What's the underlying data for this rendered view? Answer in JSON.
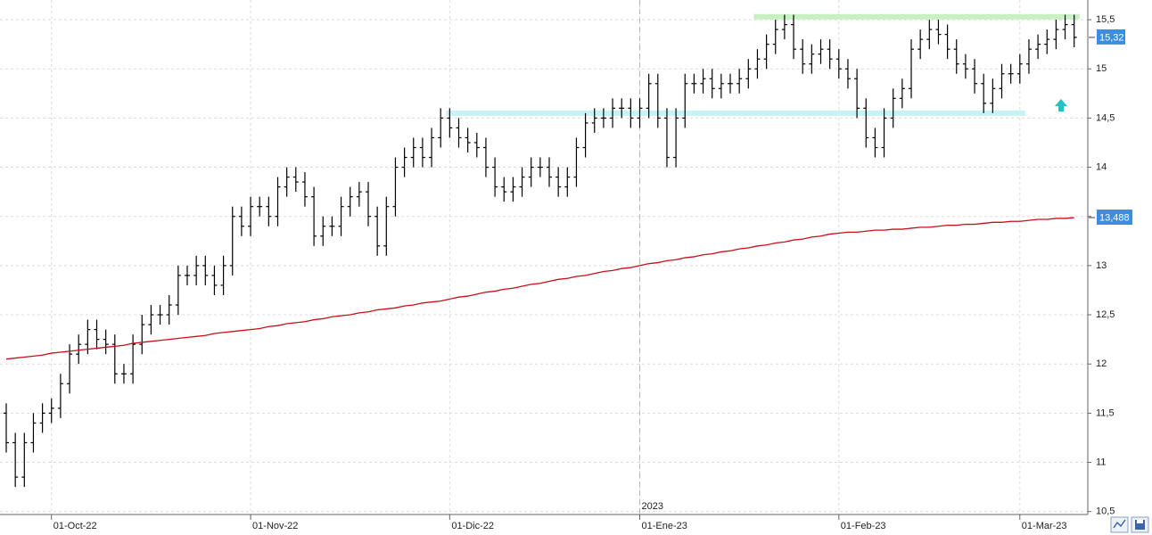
{
  "chart_data": {
    "type": "ohlc",
    "categories": [
      null,
      null,
      null,
      null,
      null,
      "01-Oct-22",
      null,
      null,
      null,
      null,
      null,
      null,
      null,
      null,
      null,
      null,
      null,
      null,
      null,
      null,
      null,
      null,
      null,
      null,
      null,
      null,
      null,
      "01-Nov-22",
      null,
      null,
      null,
      null,
      null,
      null,
      null,
      null,
      null,
      null,
      null,
      null,
      null,
      null,
      null,
      null,
      null,
      null,
      null,
      null,
      null,
      "01-Dic-22",
      null,
      null,
      null,
      null,
      null,
      null,
      null,
      null,
      null,
      null,
      null,
      null,
      null,
      null,
      null,
      null,
      null,
      null,
      null,
      null,
      "01-Ene-23",
      null,
      null,
      null,
      null,
      null,
      null,
      null,
      null,
      null,
      null,
      null,
      null,
      null,
      null,
      null,
      null,
      null,
      null,
      null,
      null,
      null,
      "01-Feb-23",
      null,
      null,
      null,
      null,
      null,
      null,
      null,
      null,
      null,
      null,
      null,
      null,
      null,
      null,
      null,
      null,
      null,
      null,
      null,
      "01-Mar-23",
      null,
      null,
      null,
      null,
      null,
      null
    ],
    "year_marker": {
      "index": 70,
      "label": "2023"
    },
    "ylim": [
      10.47,
      15.7
    ],
    "yticks": [
      {
        "value": 10.5,
        "label": "10,5"
      },
      11,
      {
        "value": 11.5,
        "label": "11,5"
      },
      12,
      {
        "value": 12.5,
        "label": "12,5"
      },
      13,
      {
        "value": 13.5,
        "label": "13,5"
      },
      14,
      {
        "value": 14.5,
        "label": "14,5"
      },
      15,
      {
        "value": 15.5,
        "label": "15,5"
      }
    ],
    "grid": true,
    "levels": [
      {
        "value": 15.53,
        "color": "#c6f1c0",
        "from": 83,
        "to": 119
      },
      {
        "value": 14.55,
        "color": "#c8f3f6",
        "from": 49,
        "to": 113
      }
    ],
    "series": [
      {
        "type": "ohlc",
        "color": "#000000",
        "label_color": "#3b8de0",
        "last_label": "15,32",
        "open": [
          11.5,
          11.2,
          10.85,
          11.2,
          11.4,
          11.5,
          11.55,
          11.8,
          12.1,
          12.2,
          12.35,
          12.25,
          12.2,
          11.9,
          11.9,
          12.2,
          12.4,
          12.5,
          12.5,
          12.6,
          12.9,
          12.9,
          13.0,
          12.9,
          12.8,
          13.0,
          13.5,
          13.4,
          13.6,
          13.6,
          13.5,
          13.8,
          13.9,
          13.85,
          13.7,
          13.3,
          13.4,
          13.4,
          13.6,
          13.7,
          13.75,
          13.5,
          13.2,
          13.6,
          14.0,
          14.1,
          14.2,
          14.1,
          14.3,
          14.5,
          14.4,
          14.3,
          14.25,
          14.2,
          14.0,
          13.8,
          13.75,
          13.8,
          13.9,
          14.0,
          14.0,
          13.9,
          13.8,
          13.9,
          14.2,
          14.45,
          14.5,
          14.5,
          14.6,
          14.6,
          14.5,
          14.6,
          14.85,
          14.5,
          14.1,
          14.5,
          14.85,
          14.85,
          14.9,
          14.8,
          14.85,
          14.85,
          14.9,
          15.0,
          15.1,
          15.25,
          15.4,
          15.45,
          15.2,
          15.05,
          15.15,
          15.2,
          15.1,
          15.0,
          14.9,
          14.6,
          14.3,
          14.2,
          14.5,
          14.7,
          14.8,
          15.2,
          15.3,
          15.4,
          15.35,
          15.2,
          15.05,
          15.0,
          14.85,
          14.65,
          14.8,
          14.95,
          14.95,
          15.05,
          15.2,
          15.25,
          15.3,
          15.4,
          15.45
        ],
        "high": [
          11.6,
          11.3,
          11.3,
          11.5,
          11.6,
          11.65,
          11.9,
          12.2,
          12.3,
          12.45,
          12.45,
          12.35,
          12.3,
          12.0,
          12.3,
          12.5,
          12.6,
          12.6,
          12.7,
          13.0,
          13.0,
          13.1,
          13.1,
          13.0,
          13.1,
          13.6,
          13.6,
          13.7,
          13.7,
          13.7,
          13.9,
          14.0,
          14.0,
          13.95,
          13.8,
          13.5,
          13.5,
          13.7,
          13.8,
          13.85,
          13.85,
          13.6,
          13.7,
          14.1,
          14.2,
          14.3,
          14.3,
          14.4,
          14.6,
          14.6,
          14.5,
          14.4,
          14.35,
          14.3,
          14.1,
          13.9,
          13.9,
          14.0,
          14.1,
          14.1,
          14.1,
          14.0,
          14.0,
          14.3,
          14.55,
          14.6,
          14.6,
          14.7,
          14.7,
          14.7,
          14.7,
          14.95,
          14.95,
          14.6,
          14.6,
          14.95,
          14.95,
          15.0,
          15.0,
          14.95,
          14.95,
          15.0,
          15.1,
          15.2,
          15.35,
          15.5,
          15.55,
          15.55,
          15.3,
          15.25,
          15.3,
          15.3,
          15.2,
          15.1,
          15.0,
          14.7,
          14.4,
          14.6,
          14.8,
          14.9,
          15.3,
          15.4,
          15.5,
          15.5,
          15.45,
          15.3,
          15.15,
          15.1,
          14.95,
          14.9,
          15.05,
          15.05,
          15.15,
          15.3,
          15.35,
          15.4,
          15.5,
          15.55,
          15.55
        ],
        "low": [
          11.1,
          10.75,
          10.75,
          11.1,
          11.3,
          11.4,
          11.45,
          11.7,
          12.0,
          12.1,
          12.15,
          12.1,
          11.8,
          11.8,
          11.8,
          12.1,
          12.3,
          12.4,
          12.4,
          12.5,
          12.8,
          12.8,
          12.8,
          12.7,
          12.7,
          12.9,
          13.3,
          13.3,
          13.5,
          13.4,
          13.4,
          13.7,
          13.75,
          13.6,
          13.2,
          13.2,
          13.3,
          13.3,
          13.5,
          13.6,
          13.4,
          13.1,
          13.1,
          13.5,
          13.9,
          14.0,
          14.0,
          14.0,
          14.2,
          14.3,
          14.2,
          14.15,
          14.1,
          13.9,
          13.7,
          13.65,
          13.65,
          13.7,
          13.8,
          13.9,
          13.8,
          13.7,
          13.7,
          13.8,
          14.1,
          14.35,
          14.4,
          14.4,
          14.5,
          14.4,
          14.4,
          14.5,
          14.4,
          14.0,
          14.0,
          14.4,
          14.75,
          14.75,
          14.7,
          14.7,
          14.75,
          14.75,
          14.8,
          14.9,
          15.0,
          15.15,
          15.3,
          15.1,
          14.95,
          14.95,
          15.05,
          15.0,
          14.9,
          14.8,
          14.5,
          14.2,
          14.1,
          14.1,
          14.4,
          14.6,
          14.7,
          15.1,
          15.2,
          15.25,
          15.1,
          14.95,
          14.9,
          14.75,
          14.55,
          14.55,
          14.7,
          14.85,
          14.85,
          14.95,
          15.1,
          15.15,
          15.2,
          15.3,
          15.22
        ],
        "close": [
          11.2,
          10.85,
          11.2,
          11.4,
          11.5,
          11.55,
          11.8,
          12.1,
          12.2,
          12.35,
          12.25,
          12.2,
          11.9,
          11.9,
          12.2,
          12.4,
          12.5,
          12.5,
          12.6,
          12.9,
          12.9,
          13.0,
          12.9,
          12.8,
          13.0,
          13.5,
          13.4,
          13.6,
          13.6,
          13.5,
          13.8,
          13.9,
          13.85,
          13.7,
          13.3,
          13.4,
          13.4,
          13.6,
          13.7,
          13.75,
          13.5,
          13.2,
          13.6,
          14.0,
          14.1,
          14.2,
          14.1,
          14.3,
          14.5,
          14.4,
          14.3,
          14.25,
          14.2,
          14.0,
          13.8,
          13.75,
          13.8,
          13.9,
          14.0,
          14.0,
          13.9,
          13.8,
          13.9,
          14.2,
          14.45,
          14.5,
          14.5,
          14.6,
          14.6,
          14.5,
          14.6,
          14.85,
          14.5,
          14.1,
          14.5,
          14.85,
          14.85,
          14.9,
          14.8,
          14.85,
          14.85,
          14.9,
          15.0,
          15.1,
          15.25,
          15.4,
          15.45,
          15.2,
          15.05,
          15.15,
          15.2,
          15.1,
          15.0,
          14.9,
          14.6,
          14.3,
          14.2,
          14.5,
          14.7,
          14.8,
          15.2,
          15.3,
          15.4,
          15.35,
          15.2,
          15.05,
          15.0,
          14.85,
          14.65,
          14.8,
          14.95,
          14.95,
          15.05,
          15.2,
          15.25,
          15.3,
          15.4,
          15.45,
          15.32
        ]
      },
      {
        "type": "line",
        "color": "#c8101a",
        "label_color": "#3b8de0",
        "last_label": "13,488",
        "values": [
          12.05,
          12.06,
          12.07,
          12.08,
          12.09,
          12.11,
          12.12,
          12.13,
          12.14,
          12.15,
          12.16,
          12.17,
          12.18,
          12.19,
          12.21,
          12.22,
          12.23,
          12.24,
          12.25,
          12.26,
          12.27,
          12.28,
          12.29,
          12.31,
          12.32,
          12.33,
          12.34,
          12.35,
          12.36,
          12.38,
          12.39,
          12.41,
          12.42,
          12.43,
          12.45,
          12.46,
          12.48,
          12.49,
          12.5,
          12.52,
          12.53,
          12.55,
          12.56,
          12.57,
          12.59,
          12.6,
          12.62,
          12.63,
          12.64,
          12.66,
          12.68,
          12.69,
          12.71,
          12.73,
          12.74,
          12.76,
          12.77,
          12.79,
          12.81,
          12.82,
          12.84,
          12.86,
          12.87,
          12.89,
          12.9,
          12.92,
          12.94,
          12.95,
          12.97,
          12.98,
          13.0,
          13.02,
          13.03,
          13.05,
          13.06,
          13.08,
          13.09,
          13.11,
          13.12,
          13.14,
          13.15,
          13.17,
          13.18,
          13.2,
          13.21,
          13.23,
          13.24,
          13.26,
          13.27,
          13.29,
          13.3,
          13.32,
          13.33,
          13.34,
          13.34,
          13.35,
          13.36,
          13.36,
          13.37,
          13.37,
          13.38,
          13.39,
          13.39,
          13.4,
          13.41,
          13.41,
          13.42,
          13.42,
          13.43,
          13.44,
          13.44,
          13.45,
          13.45,
          13.46,
          13.47,
          13.47,
          13.48,
          13.48,
          13.488
        ]
      }
    ]
  }
}
